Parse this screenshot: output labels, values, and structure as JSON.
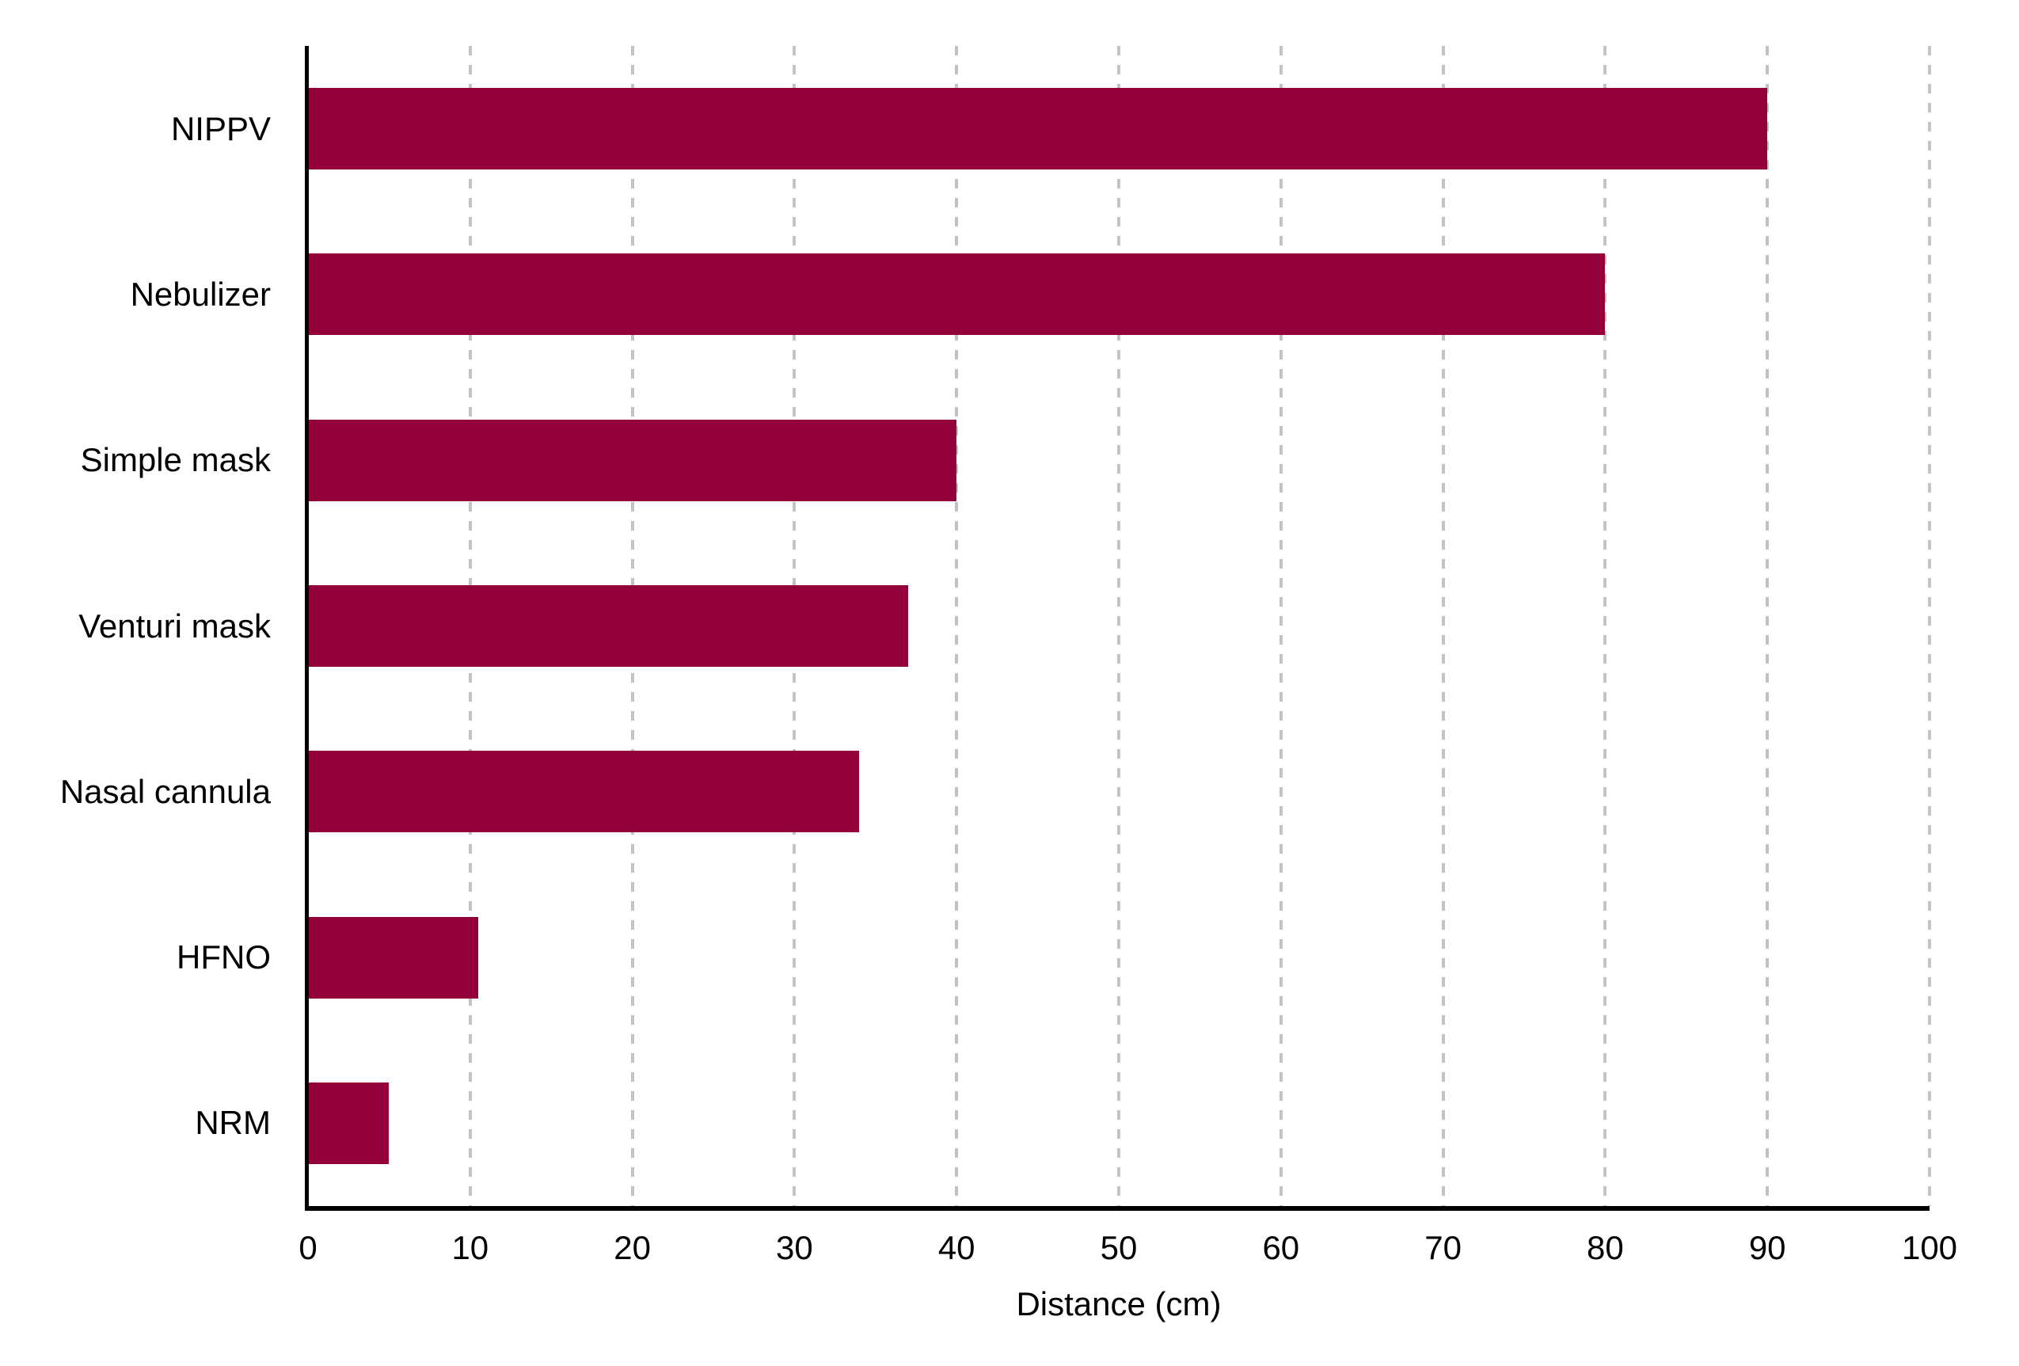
{
  "chart_data": {
    "type": "bar",
    "orientation": "horizontal",
    "title": "",
    "xlabel": "Distance (cm)",
    "ylabel": "",
    "categories": [
      "NIPPV",
      "Nebulizer",
      "Simple mask",
      "Venturi mask",
      "Nasal cannula",
      "HFNO",
      "NRM"
    ],
    "values": [
      90,
      80,
      40,
      37,
      34,
      10.5,
      5
    ],
    "xlim": [
      0,
      100
    ],
    "xticks": [
      0,
      10,
      20,
      30,
      40,
      50,
      60,
      70,
      80,
      90,
      100
    ],
    "grid": "vertical-dashed",
    "legend": "none",
    "colors": {
      "bar": "#94003A",
      "gridline": "#C2C2C2",
      "axis": "#000000",
      "text": "#000000"
    }
  }
}
